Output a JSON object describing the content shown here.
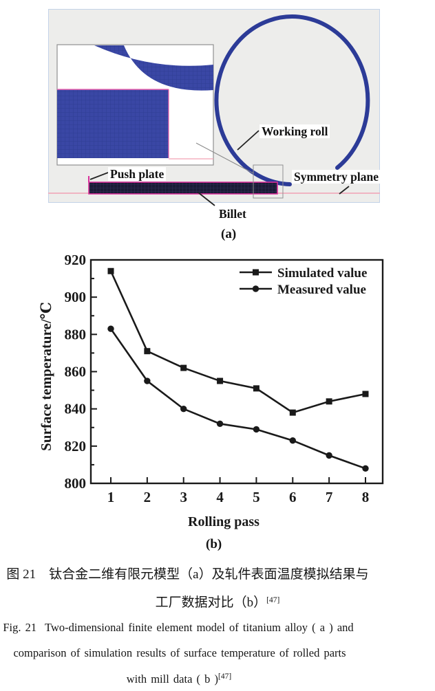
{
  "figure": {
    "panel_a": {
      "labels": {
        "working_roll": "Working roll",
        "push_plate": "Push plate",
        "billet": "Billet",
        "symmetry_plane": "Symmetry plane"
      },
      "sublabel": "(a)"
    },
    "panel_b_sublabel": "(b)",
    "colors": {
      "roll_blue": "#2C3B97",
      "mesh_blue": "#3A47A5",
      "mesh_grid": "#2F3D92",
      "billet_dark": "#1B1B36",
      "billet_grid": "#34345E",
      "magenta": "#D9309A",
      "pink_line": "#F2A2B4",
      "panel_bg": "#EDEDEB",
      "panel_border": "#C3D3E8",
      "inset_border": "#909090",
      "leader_gray": "#8A8A8A",
      "chart_ink": "#1A1A1A"
    }
  },
  "chart_data": {
    "type": "line",
    "x": [
      1,
      2,
      3,
      4,
      5,
      6,
      7,
      8
    ],
    "series": [
      {
        "name": "Simulated value",
        "marker": "square",
        "values": [
          914,
          871,
          862,
          855,
          851,
          838,
          844,
          848
        ]
      },
      {
        "name": "Measured value",
        "marker": "circle",
        "values": [
          883,
          855,
          840,
          832,
          829,
          823,
          815,
          808
        ]
      }
    ],
    "xlabel": "Rolling pass",
    "ylabel": "Surface temperature/℃",
    "ylim": [
      800,
      920
    ],
    "yticks": [
      800,
      820,
      840,
      860,
      880,
      900,
      920
    ],
    "legend_position": "top-right",
    "grid": false
  },
  "caption": {
    "zh_line1": "图 21　钛合金二维有限元模型（a）及轧件表面温度模拟结果与",
    "zh_line2": "工厂数据对比（b）",
    "zh_ref_sup": "[47]",
    "en_line1": "Fig. 21  Two-dimensional finite element model of titanium alloy ( a ) and",
    "en_line2": "comparison of simulation results of surface temperature of rolled parts",
    "en_line3": "with mill data ( b )",
    "en_ref_sup": "[47]"
  }
}
